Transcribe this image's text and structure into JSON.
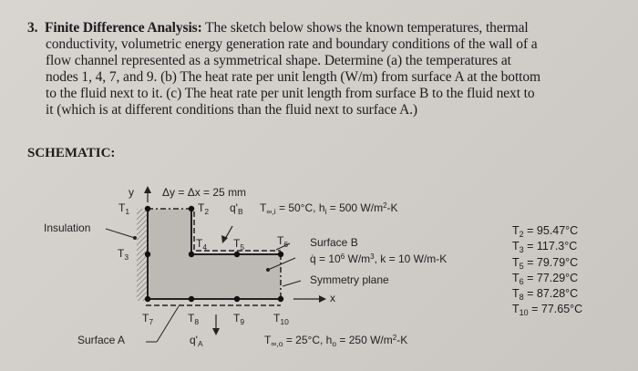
{
  "problem": {
    "number": "3.",
    "title": "Finite Difference Analysis:",
    "lines": [
      " The sketch below shows the known temperatures, thermal",
      "conductivity, volumetric energy generation rate and boundary conditions of the wall of a",
      "flow channel represented as a symmetrical shape. Determine (a) the temperatures at",
      "nodes 1, 4, 7, and 9. (b) The heat rate per unit length (W/m) from surface A at the bottom",
      "to the fluid next to it. (c) The heat rate per unit length from surface B to the fluid next to",
      "it (which is at different conditions than the fluid next to surface A.)"
    ]
  },
  "schematic": {
    "heading": "SCHEMATIC:",
    "y_axis": "y",
    "x_axis": "x",
    "spacing": "Δy = Δx = 25 mm",
    "insulation": "Insulation",
    "surface_a": "Surface A",
    "surface_b": "Surface B",
    "symmetry": "Symmetry plane",
    "inner_fluid": {
      "T": "T",
      "sub": "∞,i",
      "rest": " = 50°C, h",
      "hsub": "i",
      "rest2": " = 500 W/m",
      "sup": "2",
      "end": "-K"
    },
    "outer_fluid": {
      "T": "T",
      "sub": "∞,o",
      "rest": " = 25°C, h",
      "hsub": "o",
      "rest2": " = 250 W/m",
      "sup": "2",
      "end": "-K"
    },
    "generation": {
      "q": "q̇ = 10",
      "sup": "6",
      "rest": " W/m",
      "sup2": "3",
      "end": ", k = 10 W/m-K"
    },
    "qA": {
      "q": "q'",
      "sub": "A"
    },
    "qB": {
      "q": "q'",
      "sub": "B"
    },
    "nodes": [
      "1",
      "2",
      "3",
      "4",
      "5",
      "6",
      "7",
      "8",
      "9",
      "10"
    ]
  },
  "results": [
    {
      "sub": "2",
      "value": " = 95.47°C"
    },
    {
      "sub": "3",
      "value": " = 117.3°C"
    },
    {
      "sub": "5",
      "value": " = 79.79°C"
    },
    {
      "sub": "6",
      "value": " = 77.29°C"
    },
    {
      "sub": "8",
      "value": " = 87.28°C"
    },
    {
      "sub": "10",
      "value": " = 77.65°C"
    }
  ]
}
